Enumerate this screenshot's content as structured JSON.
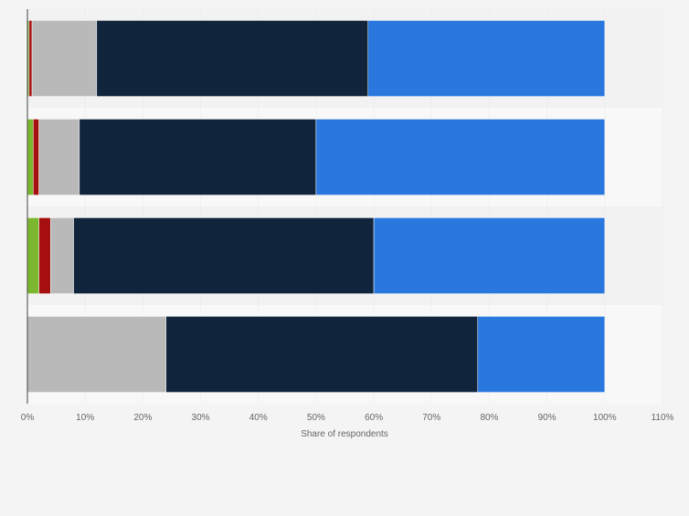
{
  "chart_data": {
    "type": "bar",
    "orientation": "horizontal",
    "stacked": true,
    "categories": [
      "",
      "",
      "",
      ""
    ],
    "series": [
      {
        "color": "#7cb82f",
        "values": [
          0.3,
          1.0,
          2.0,
          0
        ]
      },
      {
        "color": "#a50f0f",
        "values": [
          0.5,
          1.0,
          2.0,
          0
        ]
      },
      {
        "color": "#b9b9b9",
        "values": [
          11.2,
          7.0,
          4.0,
          24.0
        ]
      },
      {
        "color": "#10253b",
        "values": [
          47.0,
          41.0,
          52.0,
          54.0
        ]
      },
      {
        "color": "#2a77dd",
        "values": [
          41.0,
          50.0,
          40.0,
          22.0
        ]
      }
    ],
    "xlabel": "Share of respondents",
    "ylabel": "",
    "xlim": [
      0,
      110
    ],
    "x_ticks": [
      "0%",
      "10%",
      "20%",
      "30%",
      "40%",
      "50%",
      "60%",
      "70%",
      "80%",
      "90%",
      "100%",
      "110%"
    ],
    "grid": true,
    "legend": "none"
  }
}
